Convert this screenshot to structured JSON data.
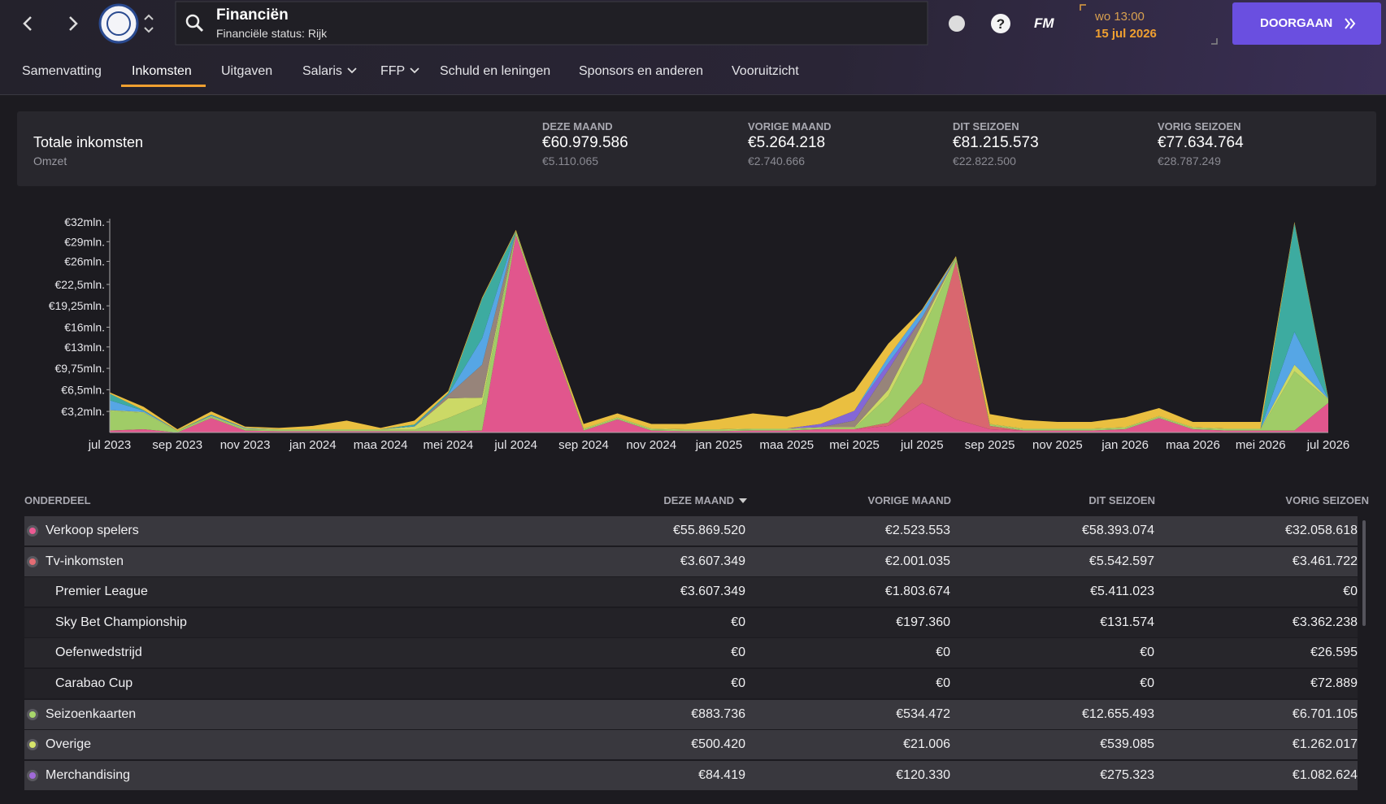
{
  "header": {
    "title": "Financiën",
    "subtitle": "Financiële status: Rijk",
    "logo": "FM",
    "time": "wo 13:00",
    "date": "15 jul 2026",
    "continue": "DOORGAAN"
  },
  "tabs": [
    {
      "label": "Samenvatting"
    },
    {
      "label": "Inkomsten",
      "active": true
    },
    {
      "label": "Uitgaven"
    },
    {
      "label": "Salaris",
      "dropdown": true
    },
    {
      "label": "FFP",
      "dropdown": true
    },
    {
      "label": "Schuld en leningen"
    },
    {
      "label": "Sponsors en anderen"
    },
    {
      "label": "Vooruitzicht"
    }
  ],
  "summary": {
    "title": "Totale inkomsten",
    "subtitle": "Omzet",
    "stats": [
      {
        "label": "DEZE MAAND",
        "value": "€60.979.586",
        "sub": "€5.110.065"
      },
      {
        "label": "VORIGE MAAND",
        "value": "€5.264.218",
        "sub": "€2.740.666"
      },
      {
        "label": "DIT SEIZOEN",
        "value": "€81.215.573",
        "sub": "€22.822.500"
      },
      {
        "label": "VORIG SEIZOEN",
        "value": "€77.634.764",
        "sub": "€28.787.249"
      }
    ]
  },
  "chart": {
    "type": "stacked_area",
    "categories": [
      "jul 2023",
      null,
      "sep 2023",
      null,
      "nov 2023",
      null,
      "jan 2024",
      null,
      "maa 2024",
      null,
      "mei 2024",
      null,
      "jul 2024",
      null,
      "sep 2024",
      null,
      "nov 2024",
      null,
      "jan 2025",
      null,
      "maa 2025",
      null,
      "mei 2025",
      null,
      "jul 2025",
      null,
      "sep 2025",
      null,
      "nov 2025",
      null,
      "jan 2026",
      null,
      "maa 2026",
      null,
      "mei 2026",
      null,
      "jul 2026"
    ],
    "ylim": [
      0,
      32
    ],
    "yticks": [
      {
        "value": 3.2,
        "label": "€3,2mln."
      },
      {
        "value": 6.5,
        "label": "€6,5mln."
      },
      {
        "value": 9.75,
        "label": "€9,75mln."
      },
      {
        "value": 13,
        "label": "€13mln."
      },
      {
        "value": 16,
        "label": "€16mln."
      },
      {
        "value": 19.25,
        "label": "€19,25mln."
      },
      {
        "value": 22.5,
        "label": "€22,5mln."
      },
      {
        "value": 26,
        "label": "€26mln."
      },
      {
        "value": 29,
        "label": "€29mln."
      },
      {
        "value": 32,
        "label": "€32mln."
      }
    ],
    "series": [
      {
        "color": "#ec5a93",
        "values": [
          0.3,
          0.5,
          0,
          2.2,
          0.3,
          0.2,
          0.2,
          0.2,
          0.2,
          0.2,
          0.2,
          0.3,
          30,
          15,
          0.3,
          2,
          0.3,
          0.2,
          0.2,
          0.3,
          0.3,
          0.5,
          0.5,
          1,
          4.5,
          2,
          0.5,
          0.3,
          0.3,
          0.3,
          0.5,
          2.2,
          0.5,
          0.3,
          0.3,
          0.3,
          4.5
        ]
      },
      {
        "color": "#e46c74",
        "values": [
          0,
          0,
          0,
          0,
          0,
          0,
          0,
          0,
          0,
          0,
          0,
          0,
          0,
          0,
          0,
          0,
          0,
          0,
          0,
          0,
          0,
          0,
          0,
          0.5,
          3,
          24,
          0.5,
          0,
          0,
          0,
          0,
          0,
          0,
          0,
          0,
          0,
          0
        ]
      },
      {
        "color": "#a8d66b",
        "values": [
          3,
          2.5,
          0.2,
          0.2,
          0.2,
          0.2,
          0.2,
          0.2,
          0.2,
          0.2,
          2,
          4,
          0.5,
          0.2,
          0.2,
          0.2,
          0.2,
          0.2,
          0.2,
          0.2,
          0.2,
          0.2,
          0.2,
          4,
          8,
          0.5,
          0.2,
          0.2,
          0.2,
          0.2,
          0.2,
          0.2,
          0.2,
          0.2,
          0.2,
          9,
          0.5
        ]
      },
      {
        "color": "#d6e46a",
        "values": [
          0.1,
          0.1,
          0.1,
          0.1,
          0.1,
          0.1,
          0.1,
          0.1,
          0.1,
          0.5,
          3,
          1,
          0.1,
          0.1,
          0.1,
          0.1,
          0.1,
          0.1,
          0.1,
          0.1,
          0.1,
          0.1,
          0.1,
          1,
          1,
          0.1,
          0.1,
          0.1,
          0.1,
          0.1,
          0.1,
          0.1,
          0.1,
          0.1,
          0.1,
          1,
          0.1
        ]
      },
      {
        "color": "#9e8a80",
        "values": [
          0,
          0,
          0,
          0,
          0,
          0,
          0,
          0,
          0,
          0,
          0.5,
          5,
          0,
          0,
          0,
          0,
          0,
          0,
          0,
          0,
          0,
          0,
          1,
          3,
          1,
          0,
          0,
          0,
          0,
          0,
          0,
          0,
          0,
          0,
          0,
          0,
          0
        ]
      },
      {
        "color": "#8a6be0",
        "values": [
          0,
          0,
          0,
          0,
          0,
          0,
          0,
          0,
          0,
          0,
          0,
          0,
          0,
          0,
          0,
          0,
          0,
          0,
          0,
          0,
          0,
          0.5,
          1.5,
          1,
          0,
          0,
          0,
          0,
          0,
          0,
          0,
          0,
          0,
          0,
          0,
          0,
          0
        ]
      },
      {
        "color": "#5aaef0",
        "values": [
          1.5,
          0.2,
          0,
          0.1,
          0.1,
          0,
          0,
          0,
          0,
          0.1,
          0.1,
          4,
          0,
          0,
          0,
          0,
          0,
          0,
          0,
          0,
          0,
          0,
          0,
          1,
          1,
          0,
          0,
          0,
          0,
          0,
          0,
          0,
          0,
          0,
          0,
          5,
          0
        ]
      },
      {
        "color": "#3fb3a8",
        "values": [
          1,
          0.1,
          0,
          0.1,
          0,
          0,
          0,
          0,
          0,
          0.2,
          0.2,
          6,
          0,
          0,
          0,
          0,
          0,
          0,
          0,
          0,
          0,
          0,
          0,
          0,
          0,
          0,
          0,
          0,
          0,
          0,
          0,
          0,
          0,
          0,
          0,
          16.5,
          0
        ]
      },
      {
        "color": "#f5c842",
        "values": [
          0.2,
          0.5,
          0.2,
          0.5,
          0.2,
          0.2,
          0.5,
          1.3,
          0.2,
          0.6,
          0.3,
          0.2,
          0.2,
          0.2,
          0.7,
          0.6,
          0.7,
          0.8,
          1.5,
          2.3,
          1.8,
          2.5,
          3,
          2,
          0.2,
          0.2,
          1.5,
          1.3,
          1,
          1,
          1.5,
          1.2,
          0.8,
          1,
          1,
          0.2,
          0.2
        ]
      }
    ]
  },
  "table": {
    "columns": [
      "ONDERDEEL",
      "DEZE MAAND",
      "VORIGE MAAND",
      "DIT SEIZOEN",
      "VORIG SEIZOEN"
    ],
    "rows": [
      {
        "name": "Verkoop spelers",
        "color": "#ec5a93",
        "values": [
          "€55.869.520",
          "€2.523.553",
          "€58.393.074",
          "€32.058.618"
        ]
      },
      {
        "name": "Tv-inkomsten",
        "color": "#e46c74",
        "values": [
          "€3.607.349",
          "€2.001.035",
          "€5.542.597",
          "€3.461.722"
        ]
      },
      {
        "name": "Premier League",
        "sub": true,
        "values": [
          "€3.607.349",
          "€1.803.674",
          "€5.411.023",
          "€0"
        ]
      },
      {
        "name": "Sky Bet Championship",
        "sub": true,
        "values": [
          "€0",
          "€197.360",
          "€131.574",
          "€3.362.238"
        ]
      },
      {
        "name": "Oefenwedstrijd",
        "sub": true,
        "values": [
          "€0",
          "€0",
          "€0",
          "€26.595"
        ]
      },
      {
        "name": "Carabao Cup",
        "sub": true,
        "values": [
          "€0",
          "€0",
          "€0",
          "€72.889"
        ]
      },
      {
        "name": "Seizoenkaarten",
        "color": "#a8d66b",
        "values": [
          "€883.736",
          "€534.472",
          "€12.655.493",
          "€6.701.105"
        ]
      },
      {
        "name": "Overige",
        "color": "#d6e46a",
        "values": [
          "€500.420",
          "€21.006",
          "€539.085",
          "€1.262.017"
        ]
      },
      {
        "name": "Merchandising",
        "color": "#a06ad8",
        "values": [
          "€84.419",
          "€120.330",
          "€275.323",
          "€1.082.624"
        ]
      }
    ]
  }
}
